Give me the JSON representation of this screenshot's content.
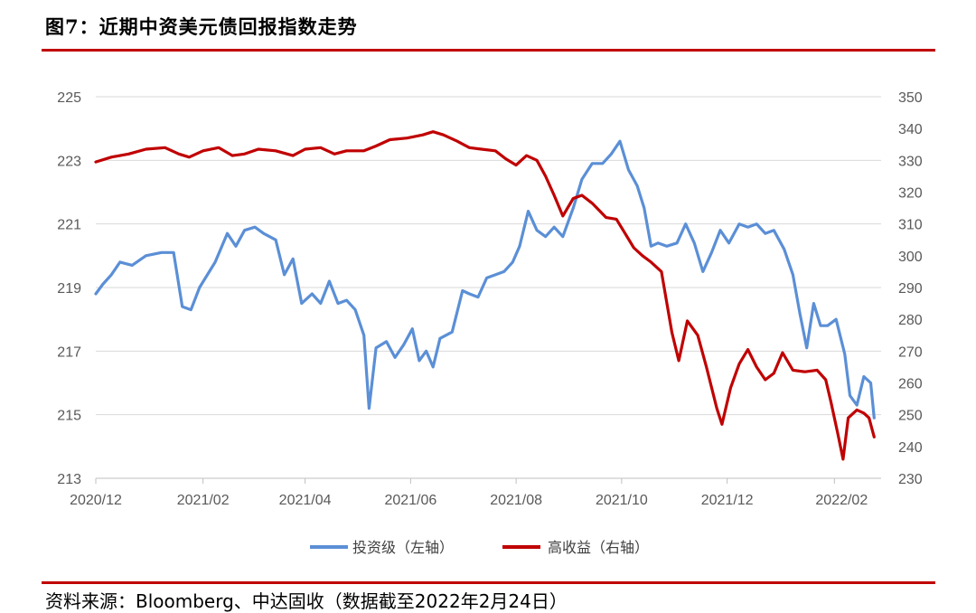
{
  "header": {
    "title": "图7：近期中资美元债回报指数走势"
  },
  "footer": {
    "source": "资料来源：Bloomberg、中达固收（数据截至2022年2月24日）"
  },
  "colors": {
    "ig": "#5b8fd6",
    "hy": "#c00000",
    "rule": "#c00000",
    "grid": "#d9d9d9"
  },
  "chart_data": {
    "type": "line",
    "title": "图7：近期中资美元债回报指数走势",
    "x_tick_labels": [
      "2020/12",
      "2021/02",
      "2021/04",
      "2021/06",
      "2021/08",
      "2021/10",
      "2021/12",
      "2022/02"
    ],
    "left_axis": {
      "ticks": [
        "213",
        "215",
        "217",
        "219",
        "221",
        "223",
        "225"
      ],
      "ylim": [
        213,
        225
      ]
    },
    "right_axis": {
      "ticks": [
        "230",
        "240",
        "250",
        "260",
        "270",
        "280",
        "290",
        "300",
        "310",
        "320",
        "330",
        "340",
        "350"
      ],
      "ylim": [
        230,
        350
      ]
    },
    "grid": true,
    "legend_position": "bottom",
    "series": [
      {
        "name": "投资级（左轴）",
        "axis": "left",
        "color": "#5b8fd6",
        "points": [
          [
            "2020-12-01",
            218.8
          ],
          [
            "2020-12-05",
            219.1
          ],
          [
            "2020-12-10",
            219.4
          ],
          [
            "2020-12-15",
            219.8
          ],
          [
            "2020-12-22",
            219.7
          ],
          [
            "2020-12-30",
            220.0
          ],
          [
            "2021-01-08",
            220.1
          ],
          [
            "2021-01-15",
            220.1
          ],
          [
            "2021-01-20",
            218.4
          ],
          [
            "2021-01-25",
            218.3
          ],
          [
            "2021-01-30",
            219.0
          ],
          [
            "2021-02-08",
            219.8
          ],
          [
            "2021-02-15",
            220.7
          ],
          [
            "2021-02-20",
            220.3
          ],
          [
            "2021-02-25",
            220.8
          ],
          [
            "2021-03-03",
            220.9
          ],
          [
            "2021-03-08",
            220.7
          ],
          [
            "2021-03-15",
            220.5
          ],
          [
            "2021-03-20",
            219.4
          ],
          [
            "2021-03-25",
            219.9
          ],
          [
            "2021-03-30",
            218.5
          ],
          [
            "2021-04-05",
            218.8
          ],
          [
            "2021-04-10",
            218.5
          ],
          [
            "2021-04-15",
            219.2
          ],
          [
            "2021-04-20",
            218.5
          ],
          [
            "2021-04-25",
            218.6
          ],
          [
            "2021-04-30",
            218.3
          ],
          [
            "2021-05-05",
            217.5
          ],
          [
            "2021-05-08",
            215.2
          ],
          [
            "2021-05-12",
            217.1
          ],
          [
            "2021-05-18",
            217.3
          ],
          [
            "2021-05-23",
            216.8
          ],
          [
            "2021-05-28",
            217.2
          ],
          [
            "2021-06-02",
            217.7
          ],
          [
            "2021-06-06",
            216.7
          ],
          [
            "2021-06-10",
            217.0
          ],
          [
            "2021-06-14",
            216.5
          ],
          [
            "2021-06-18",
            217.4
          ],
          [
            "2021-06-25",
            217.6
          ],
          [
            "2021-07-01",
            218.9
          ],
          [
            "2021-07-05",
            218.8
          ],
          [
            "2021-07-10",
            218.7
          ],
          [
            "2021-07-15",
            219.3
          ],
          [
            "2021-07-20",
            219.4
          ],
          [
            "2021-07-25",
            219.5
          ],
          [
            "2021-07-30",
            219.8
          ],
          [
            "2021-08-03",
            220.3
          ],
          [
            "2021-08-08",
            221.4
          ],
          [
            "2021-08-13",
            220.8
          ],
          [
            "2021-08-18",
            220.6
          ],
          [
            "2021-08-23",
            220.9
          ],
          [
            "2021-08-28",
            220.6
          ],
          [
            "2021-09-03",
            221.5
          ],
          [
            "2021-09-08",
            222.4
          ],
          [
            "2021-09-14",
            222.9
          ],
          [
            "2021-09-20",
            222.9
          ],
          [
            "2021-09-25",
            223.2
          ],
          [
            "2021-09-30",
            223.6
          ],
          [
            "2021-10-05",
            222.7
          ],
          [
            "2021-10-10",
            222.2
          ],
          [
            "2021-10-14",
            221.5
          ],
          [
            "2021-10-18",
            220.3
          ],
          [
            "2021-10-22",
            220.4
          ],
          [
            "2021-10-27",
            220.3
          ],
          [
            "2021-11-02",
            220.4
          ],
          [
            "2021-11-07",
            221.0
          ],
          [
            "2021-11-12",
            220.4
          ],
          [
            "2021-11-17",
            219.5
          ],
          [
            "2021-11-22",
            220.1
          ],
          [
            "2021-11-27",
            220.8
          ],
          [
            "2021-12-02",
            220.4
          ],
          [
            "2021-12-08",
            221.0
          ],
          [
            "2021-12-13",
            220.9
          ],
          [
            "2021-12-18",
            221.0
          ],
          [
            "2021-12-23",
            220.7
          ],
          [
            "2021-12-28",
            220.8
          ],
          [
            "2022-01-03",
            220.2
          ],
          [
            "2022-01-08",
            219.4
          ],
          [
            "2022-01-12",
            218.2
          ],
          [
            "2022-01-16",
            217.1
          ],
          [
            "2022-01-20",
            218.5
          ],
          [
            "2022-01-24",
            217.8
          ],
          [
            "2022-01-28",
            217.8
          ],
          [
            "2022-02-02",
            218.0
          ],
          [
            "2022-02-07",
            216.9
          ],
          [
            "2022-02-10",
            215.6
          ],
          [
            "2022-02-14",
            215.3
          ],
          [
            "2022-02-18",
            216.2
          ],
          [
            "2022-02-22",
            216.0
          ],
          [
            "2022-02-24",
            214.9
          ]
        ]
      },
      {
        "name": "高收益（右轴）",
        "axis": "right",
        "color": "#c00000",
        "points": [
          [
            "2020-12-01",
            329.5
          ],
          [
            "2020-12-10",
            331.0
          ],
          [
            "2020-12-20",
            332.0
          ],
          [
            "2020-12-30",
            333.5
          ],
          [
            "2021-01-10",
            334.0
          ],
          [
            "2021-01-18",
            332.0
          ],
          [
            "2021-01-24",
            331.0
          ],
          [
            "2021-02-01",
            333.0
          ],
          [
            "2021-02-10",
            334.0
          ],
          [
            "2021-02-18",
            331.5
          ],
          [
            "2021-02-25",
            332.0
          ],
          [
            "2021-03-05",
            333.5
          ],
          [
            "2021-03-15",
            333.0
          ],
          [
            "2021-03-25",
            331.5
          ],
          [
            "2021-04-01",
            333.5
          ],
          [
            "2021-04-10",
            334.0
          ],
          [
            "2021-04-18",
            332.0
          ],
          [
            "2021-04-25",
            333.0
          ],
          [
            "2021-05-05",
            333.0
          ],
          [
            "2021-05-12",
            334.5
          ],
          [
            "2021-05-20",
            336.5
          ],
          [
            "2021-05-30",
            337.0
          ],
          [
            "2021-06-08",
            338.0
          ],
          [
            "2021-06-14",
            339.0
          ],
          [
            "2021-06-20",
            338.0
          ],
          [
            "2021-06-28",
            336.0
          ],
          [
            "2021-07-05",
            334.0
          ],
          [
            "2021-07-12",
            333.5
          ],
          [
            "2021-07-20",
            333.0
          ],
          [
            "2021-07-26",
            330.5
          ],
          [
            "2021-08-01",
            328.5
          ],
          [
            "2021-08-07",
            331.5
          ],
          [
            "2021-08-13",
            330.0
          ],
          [
            "2021-08-18",
            325.0
          ],
          [
            "2021-08-23",
            319.0
          ],
          [
            "2021-08-28",
            312.5
          ],
          [
            "2021-09-03",
            318.0
          ],
          [
            "2021-09-08",
            319.0
          ],
          [
            "2021-09-14",
            316.5
          ],
          [
            "2021-09-22",
            312.0
          ],
          [
            "2021-09-28",
            311.5
          ],
          [
            "2021-10-03",
            307.0
          ],
          [
            "2021-10-08",
            302.5
          ],
          [
            "2021-10-13",
            300.0
          ],
          [
            "2021-10-18",
            298.0
          ],
          [
            "2021-10-24",
            295.0
          ],
          [
            "2021-10-30",
            276.0
          ],
          [
            "2021-11-03",
            267.0
          ],
          [
            "2021-11-08",
            279.5
          ],
          [
            "2021-11-14",
            275.0
          ],
          [
            "2021-11-19",
            265.0
          ],
          [
            "2021-11-25",
            252.0
          ],
          [
            "2021-11-28",
            247.0
          ],
          [
            "2021-12-03",
            258.5
          ],
          [
            "2021-12-08",
            266.0
          ],
          [
            "2021-12-13",
            270.5
          ],
          [
            "2021-12-18",
            265.0
          ],
          [
            "2021-12-23",
            261.0
          ],
          [
            "2021-12-28",
            263.0
          ],
          [
            "2022-01-02",
            269.5
          ],
          [
            "2022-01-08",
            264.0
          ],
          [
            "2022-01-15",
            263.5
          ],
          [
            "2022-01-22",
            264.0
          ],
          [
            "2022-01-27",
            261.0
          ],
          [
            "2022-01-30",
            254.0
          ],
          [
            "2022-02-03",
            244.0
          ],
          [
            "2022-02-06",
            236.0
          ],
          [
            "2022-02-09",
            249.0
          ],
          [
            "2022-02-14",
            251.5
          ],
          [
            "2022-02-18",
            250.5
          ],
          [
            "2022-02-21",
            249.0
          ],
          [
            "2022-02-24",
            243.0
          ]
        ]
      }
    ]
  }
}
